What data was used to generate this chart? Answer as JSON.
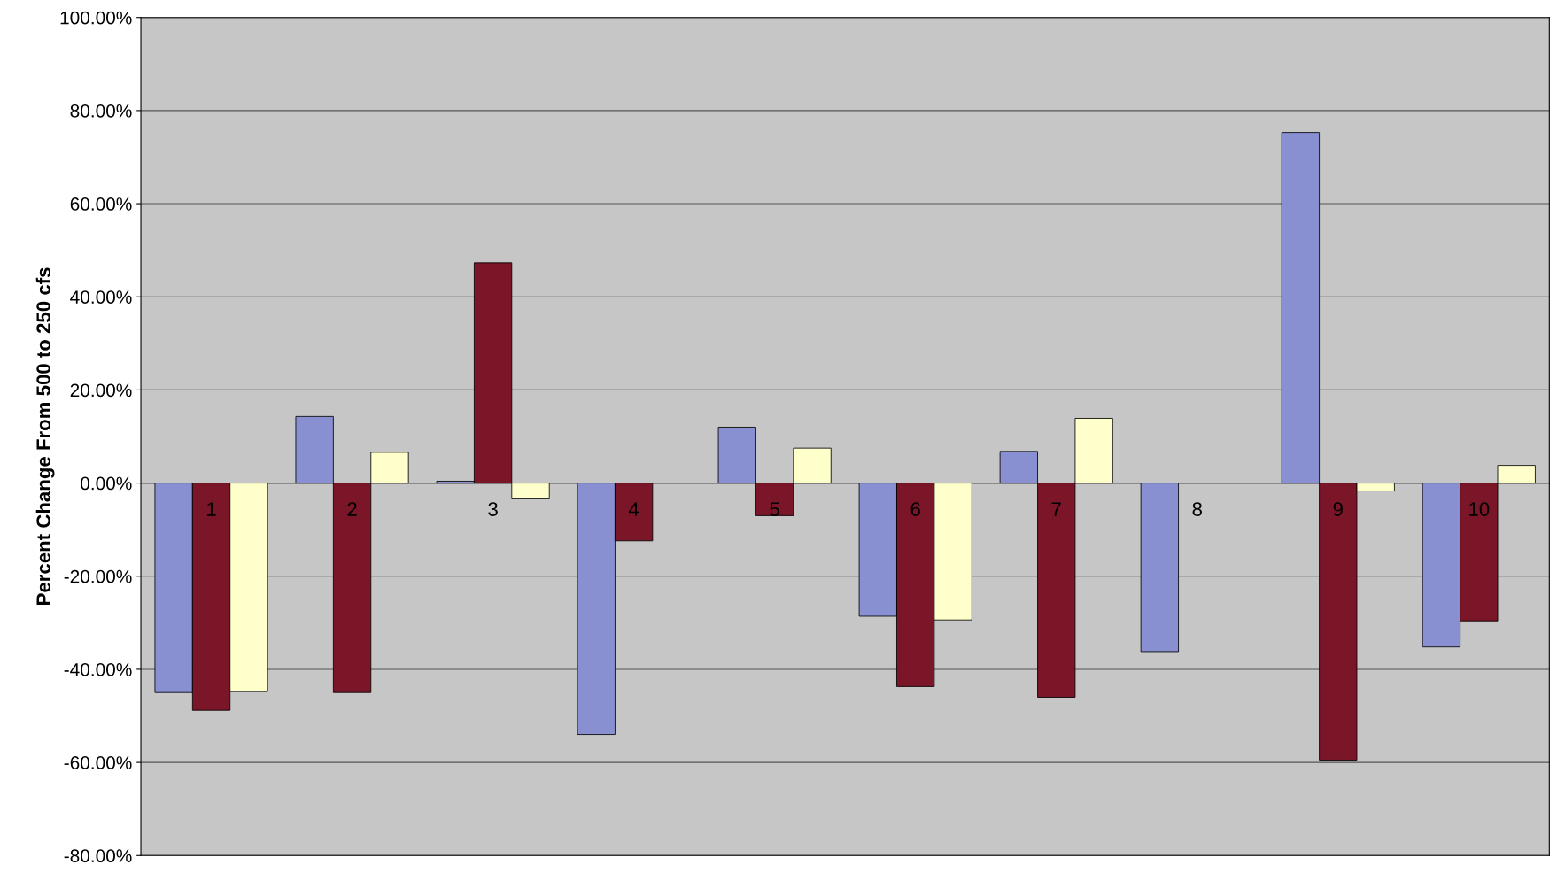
{
  "chart_data": {
    "type": "bar",
    "ylabel": "Percent Change From 500 to 250 cfs",
    "categories": [
      "1",
      "2",
      "3",
      "4",
      "5",
      "6",
      "7",
      "8",
      "9",
      "10"
    ],
    "series": [
      {
        "color": "#8890d2",
        "values": [
          -45,
          14.3,
          0.4,
          -54,
          12,
          -28.6,
          6.8,
          -36.2,
          75.3,
          -35.2
        ]
      },
      {
        "color": "#7a1628",
        "values": [
          -48.8,
          -45,
          47.3,
          -12.4,
          -7,
          -43.7,
          -46,
          null,
          -59.5,
          -29.6
        ]
      },
      {
        "color": "#ffffcc",
        "values": [
          -44.8,
          6.6,
          -3.4,
          null,
          7.5,
          -29.4,
          13.9,
          null,
          -1.7,
          3.8
        ]
      }
    ],
    "ylim": [
      -80,
      100
    ],
    "yticks": [
      {
        "value": -80,
        "label": "-80.00%"
      },
      {
        "value": -60,
        "label": "-60.00%"
      },
      {
        "value": -40,
        "label": "-40.00%"
      },
      {
        "value": -20,
        "label": "-20.00%"
      },
      {
        "value": 0,
        "label": "0.00%"
      },
      {
        "value": 20,
        "label": "20.00%"
      },
      {
        "value": 40,
        "label": "40.00%"
      },
      {
        "value": 60,
        "label": "60.00%"
      },
      {
        "value": 80,
        "label": "80.00%"
      },
      {
        "value": 100,
        "label": "100.00%"
      }
    ],
    "grid": "y",
    "legend": false
  }
}
